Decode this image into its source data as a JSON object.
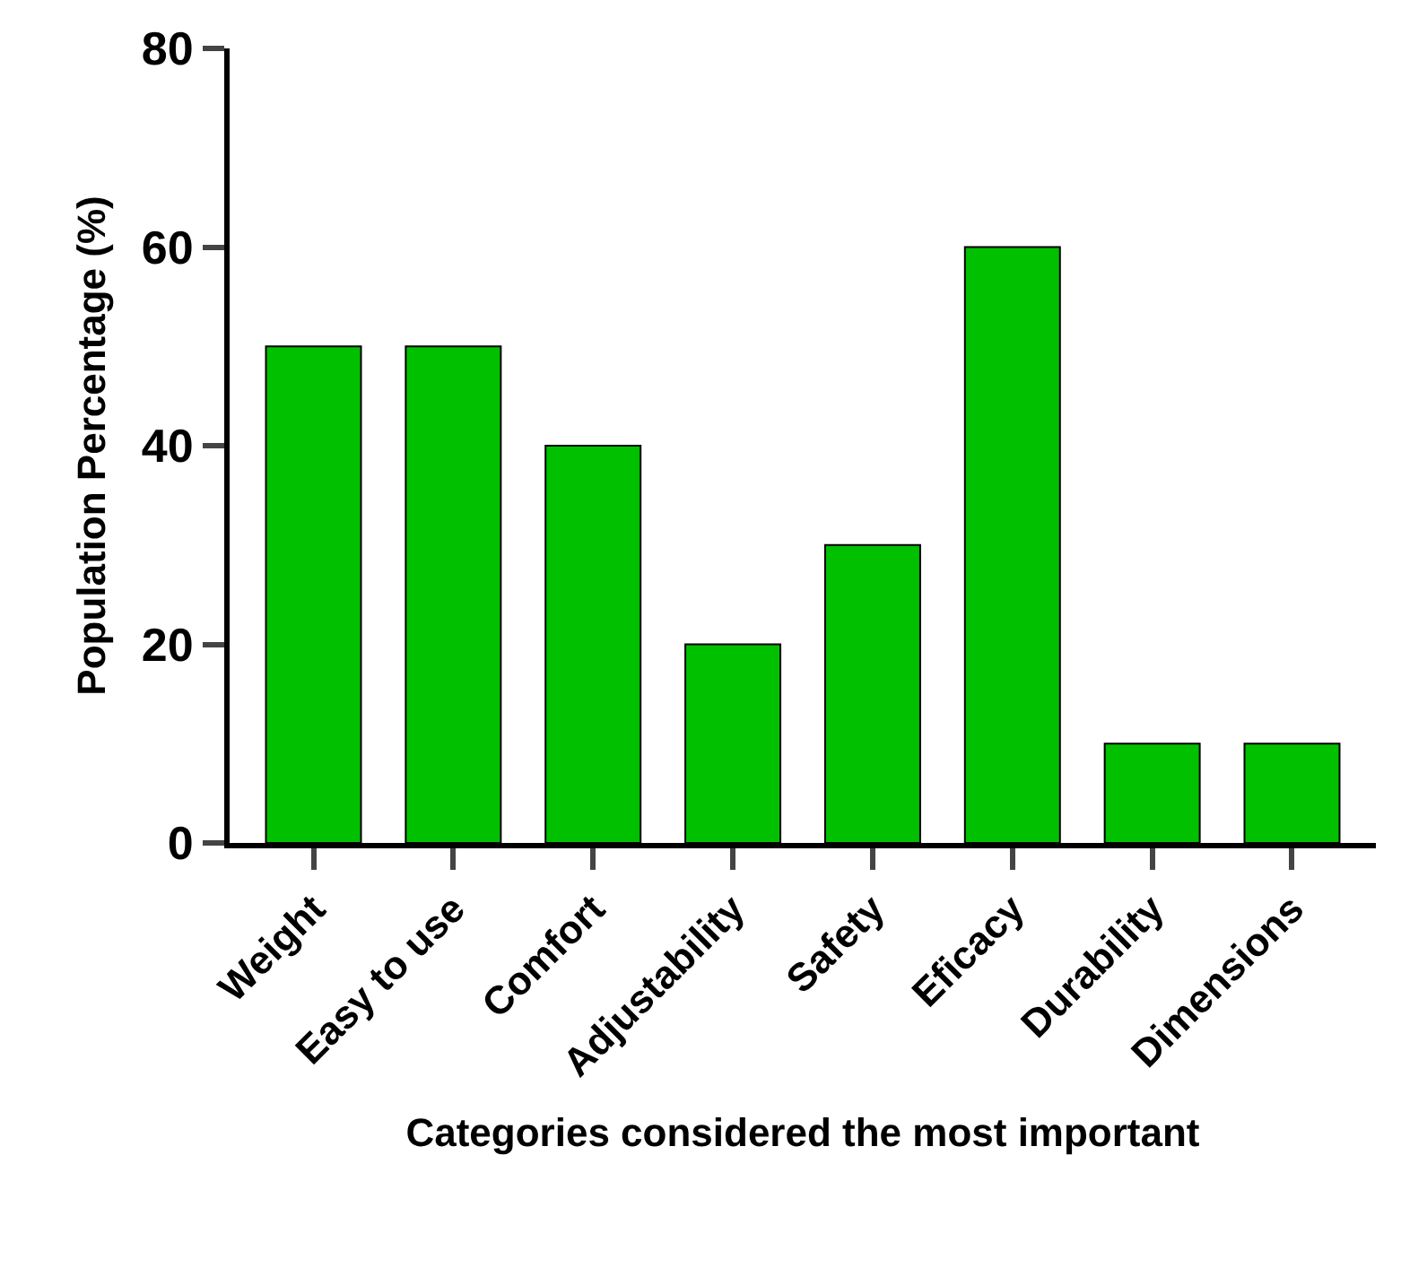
{
  "chart_data": {
    "type": "bar",
    "xlabel": "Categories considered the most important",
    "ylabel": "Population Percentage (%)",
    "categories": [
      "Weight",
      "Easy to use",
      "Comfort",
      "Adjustability",
      "Safety",
      "Eficacy",
      "Durability",
      "Dimensions"
    ],
    "values": [
      50,
      50,
      40,
      20,
      30,
      60,
      10,
      10
    ],
    "color": "#00c000",
    "ylim": [
      0,
      80
    ],
    "yticks": [
      0,
      20,
      40,
      60,
      80
    ]
  }
}
